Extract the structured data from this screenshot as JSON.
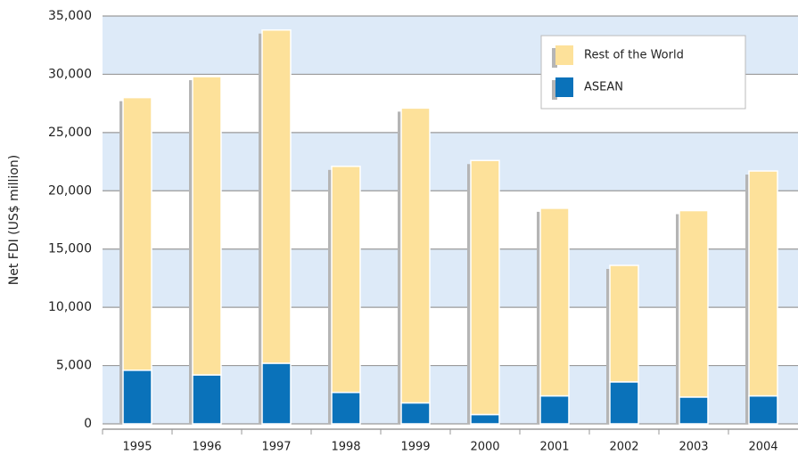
{
  "chart_data": {
    "type": "bar",
    "y_label": "Net FDI (US$ million)",
    "categories": [
      "1995",
      "1996",
      "1997",
      "1998",
      "1999",
      "2000",
      "2001",
      "2002",
      "2003",
      "2004"
    ],
    "series": [
      {
        "name": "ASEAN",
        "color": "#0a72ba",
        "values": [
          4600,
          4200,
          5200,
          2700,
          1800,
          800,
          2400,
          3600,
          2300,
          2400
        ]
      },
      {
        "name": "Rest of the World",
        "color": "#fde19a",
        "values": [
          23400,
          25600,
          28600,
          19400,
          25300,
          21800,
          16100,
          10000,
          16000,
          19300
        ]
      }
    ],
    "stacked": true,
    "ylim": [
      0,
      35000
    ],
    "yticks": [
      0,
      {
        "value": 5000,
        "label": "5,000"
      },
      {
        "value": 10000,
        "label": "10,000"
      },
      {
        "value": 15000,
        "label": "15,000"
      },
      {
        "value": 20000,
        "label": "20,000"
      },
      {
        "value": 25000,
        "label": "25,000"
      },
      {
        "value": 30000,
        "label": "30,000"
      },
      {
        "value": 35000,
        "label": "35,000"
      }
    ],
    "grid": true,
    "legend": "upper right"
  }
}
